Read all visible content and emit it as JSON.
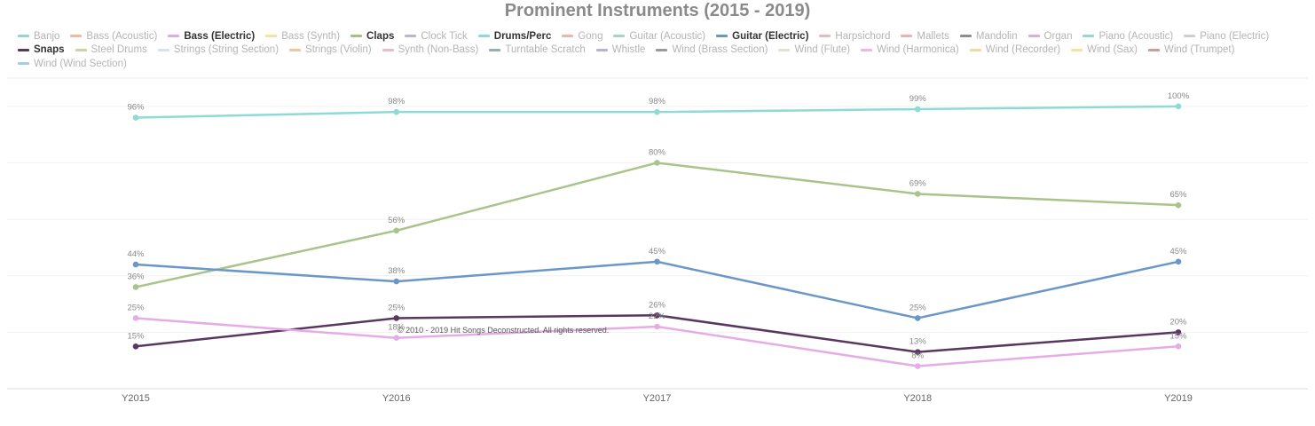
{
  "title": "Prominent Instruments (2015 - 2019)",
  "copyright": "© 2010 - 2019 Hit Songs Deconstructed. All rights reserved.",
  "legend": [
    {
      "label": "Banjo",
      "color": "#93d5cf",
      "active": false
    },
    {
      "label": "Bass (Acoustic)",
      "color": "#f2b9a0",
      "active": false
    },
    {
      "label": "Bass (Electric)",
      "color": "#e6a8e4",
      "active": true
    },
    {
      "label": "Bass (Synth)",
      "color": "#f5e3a2",
      "active": false
    },
    {
      "label": "Claps",
      "color": "#a8bf83",
      "active": true
    },
    {
      "label": "Clock Tick",
      "color": "#b9b4dc",
      "active": false
    },
    {
      "label": "Drums/Perc",
      "color": "#8edbd5",
      "active": true
    },
    {
      "label": "Gong",
      "color": "#f2b4a8",
      "active": false
    },
    {
      "label": "Guitar (Acoustic)",
      "color": "#a5d8bb",
      "active": false
    },
    {
      "label": "Guitar (Electric)",
      "color": "#6a97c7",
      "active": true
    },
    {
      "label": "Harpsichord",
      "color": "#e4b9bf",
      "active": false
    },
    {
      "label": "Mallets",
      "color": "#f2b0a8",
      "active": false
    },
    {
      "label": "Mandolin",
      "color": "#8e8e8e",
      "active": false
    },
    {
      "label": "Organ",
      "color": "#d6aee4",
      "active": false
    },
    {
      "label": "Piano (Acoustic)",
      "color": "#93dccc",
      "active": false
    },
    {
      "label": "Piano (Electric)",
      "color": "#cfcfcf",
      "active": false
    },
    {
      "label": "Snaps",
      "color": "#5a3660",
      "active": true
    },
    {
      "label": "Steel Drums",
      "color": "#c4d9a2",
      "active": false
    },
    {
      "label": "Strings (String Section)",
      "color": "#d5e2f2",
      "active": false
    },
    {
      "label": "Strings (Violin)",
      "color": "#f5c39c",
      "active": false
    },
    {
      "label": "Synth (Non-Bass)",
      "color": "#f2b9c4",
      "active": false
    },
    {
      "label": "Turntable Scratch",
      "color": "#8fb3ae",
      "active": false
    },
    {
      "label": "Whistle",
      "color": "#b8b2db",
      "active": false
    },
    {
      "label": "Wind (Brass Section)",
      "color": "#9a9a9a",
      "active": false
    },
    {
      "label": "Wind (Flute)",
      "color": "#dde4cf",
      "active": false
    },
    {
      "label": "Wind (Harmonica)",
      "color": "#f2b4e0",
      "active": false
    },
    {
      "label": "Wind (Recorder)",
      "color": "#f5d7a0",
      "active": false
    },
    {
      "label": "Wind (Sax)",
      "color": "#f5e39a",
      "active": false
    },
    {
      "label": "Wind (Trumpet)",
      "color": "#d49a9a",
      "active": false
    },
    {
      "label": "Wind (Wind Section)",
      "color": "#a3cde0",
      "active": false
    }
  ],
  "chart_data": {
    "type": "line",
    "title": "Prominent Instruments (2015 - 2019)",
    "xlabel": "",
    "ylabel": "",
    "categories": [
      "Y2015",
      "Y2016",
      "Y2017",
      "Y2018",
      "Y2019"
    ],
    "ylim": [
      0,
      110
    ],
    "grid": true,
    "legend_position": "top",
    "series": [
      {
        "name": "Drums/Perc",
        "color": "#8edbd5",
        "values": [
          96,
          98,
          98,
          99,
          100
        ],
        "labels": [
          "96%",
          "98%",
          "98%",
          "99%",
          "100%"
        ]
      },
      {
        "name": "Claps",
        "color": "#a8c48a",
        "values": [
          36,
          56,
          80,
          69,
          65
        ],
        "labels": [
          "36%",
          "56%",
          "80%",
          "69%",
          "65%"
        ]
      },
      {
        "name": "Guitar (Electric)",
        "color": "#6a97c7",
        "values": [
          44,
          38,
          45,
          25,
          45
        ],
        "labels": [
          "44%",
          "38%",
          "45%",
          "25%",
          "45%"
        ]
      },
      {
        "name": "Snaps",
        "color": "#5a3660",
        "values": [
          15,
          25,
          26,
          13,
          20
        ],
        "labels": [
          "15%",
          "25%",
          "26%",
          "13%",
          "20%"
        ]
      },
      {
        "name": "Bass (Electric)",
        "color": "#e6ace6",
        "values": [
          25,
          18,
          22,
          8,
          15
        ],
        "labels": [
          "25%",
          "18%",
          "22%",
          "8%",
          "15%"
        ]
      }
    ]
  }
}
